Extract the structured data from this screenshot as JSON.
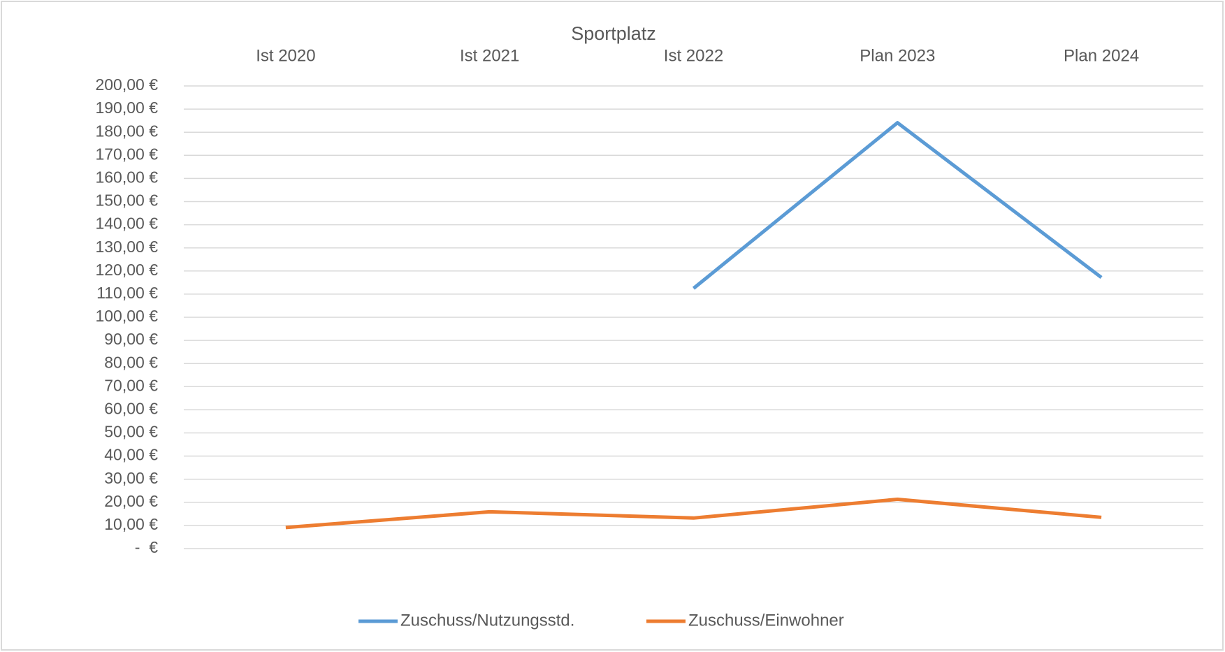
{
  "chart_data": {
    "type": "line",
    "title": "Sportplatz",
    "categories": [
      "Ist 2020",
      "Ist 2021",
      "Ist 2022",
      "Plan 2023",
      "Plan 2024"
    ],
    "series": [
      {
        "name": "Zuschuss/Nutzungsstd.",
        "color": "#5b9bd5",
        "values": [
          null,
          null,
          112.5,
          184.1,
          117.2
        ]
      },
      {
        "name": "Zuschuss/Einwohner",
        "color": "#ed7d31",
        "values": [
          9.1,
          15.9,
          13.2,
          21.3,
          13.5
        ]
      }
    ],
    "ylim": [
      0,
      200
    ],
    "yticks": [
      {
        "value": 0,
        "label": "-  €"
      },
      {
        "value": 10,
        "label": "10,00 €"
      },
      {
        "value": 20,
        "label": "20,00 €"
      },
      {
        "value": 30,
        "label": "30,00 €"
      },
      {
        "value": 40,
        "label": "40,00 €"
      },
      {
        "value": 50,
        "label": "50,00 €"
      },
      {
        "value": 60,
        "label": "60,00 €"
      },
      {
        "value": 70,
        "label": "70,00 €"
      },
      {
        "value": 80,
        "label": "80,00 €"
      },
      {
        "value": 90,
        "label": "90,00 €"
      },
      {
        "value": 100,
        "label": "100,00 €"
      },
      {
        "value": 110,
        "label": "110,00 €"
      },
      {
        "value": 120,
        "label": "120,00 €"
      },
      {
        "value": 130,
        "label": "130,00 €"
      },
      {
        "value": 140,
        "label": "140,00 €"
      },
      {
        "value": 150,
        "label": "150,00 €"
      },
      {
        "value": 160,
        "label": "160,00 €"
      },
      {
        "value": 170,
        "label": "170,00 €"
      },
      {
        "value": 180,
        "label": "180,00 €"
      },
      {
        "value": 190,
        "label": "190,00 €"
      },
      {
        "value": 200,
        "label": "200,00 €"
      }
    ],
    "grid": true,
    "legend": "bottom"
  }
}
